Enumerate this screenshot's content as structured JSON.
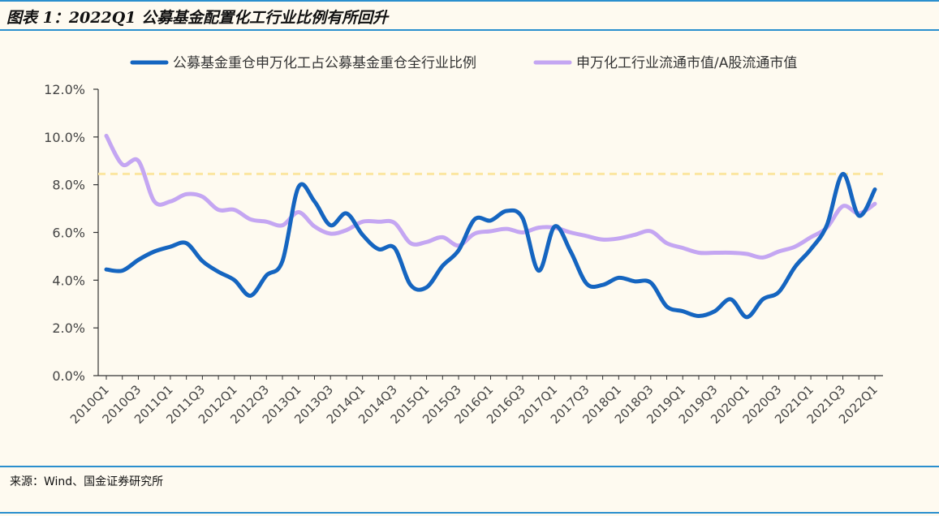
{
  "header": {
    "title": "图表 1：2022Q1 公募基金配置化工行业比例有所回升"
  },
  "footer": {
    "source": "来源：Wind、国金证券研究所"
  },
  "colors": {
    "accent_rule": "#2a8fce",
    "series_1": "#1565c0",
    "series_2": "#c4a6f2",
    "reference_line": "#fbe6a0",
    "background": "#fefaf0"
  },
  "chart_data": {
    "type": "line",
    "title": "",
    "xlabel": "",
    "ylabel": "",
    "ylim": [
      0,
      12
    ],
    "y_ticks": [
      "0.0%",
      "2.0%",
      "4.0%",
      "6.0%",
      "8.0%",
      "10.0%",
      "12.0%"
    ],
    "y_tick_values": [
      0,
      2,
      4,
      6,
      8,
      10,
      12
    ],
    "grid": false,
    "legend": "top",
    "x_tick_labels": [
      "2010Q1",
      "2010Q3",
      "2011Q1",
      "2011Q3",
      "2012Q1",
      "2012Q3",
      "2013Q1",
      "2013Q3",
      "2014Q1",
      "2014Q3",
      "2015Q1",
      "2015Q3",
      "2016Q1",
      "2016Q3",
      "2017Q1",
      "2017Q3",
      "2018Q1",
      "2018Q3",
      "2019Q1",
      "2019Q3",
      "2020Q1",
      "2020Q3",
      "2021Q1",
      "2021Q3",
      "2022Q1"
    ],
    "x": [
      "2010Q1",
      "2010Q2",
      "2010Q3",
      "2010Q4",
      "2011Q1",
      "2011Q2",
      "2011Q3",
      "2011Q4",
      "2012Q1",
      "2012Q2",
      "2012Q3",
      "2012Q4",
      "2013Q1",
      "2013Q2",
      "2013Q3",
      "2013Q4",
      "2014Q1",
      "2014Q2",
      "2014Q3",
      "2014Q4",
      "2015Q1",
      "2015Q2",
      "2015Q3",
      "2015Q4",
      "2016Q1",
      "2016Q2",
      "2016Q3",
      "2016Q4",
      "2017Q1",
      "2017Q2",
      "2017Q3",
      "2017Q4",
      "2018Q1",
      "2018Q2",
      "2018Q3",
      "2018Q4",
      "2019Q1",
      "2019Q2",
      "2019Q3",
      "2019Q4",
      "2020Q1",
      "2020Q2",
      "2020Q3",
      "2020Q4",
      "2021Q1",
      "2021Q2",
      "2021Q3",
      "2021Q4",
      "2022Q1"
    ],
    "series": [
      {
        "name": "公募基金重仓申万化工占公募基金重仓全行业比例",
        "color": "#1565c0",
        "values": [
          4.45,
          4.4,
          4.85,
          5.2,
          5.4,
          5.55,
          4.8,
          4.35,
          4.0,
          3.35,
          4.2,
          4.8,
          7.9,
          7.3,
          6.3,
          6.8,
          5.9,
          5.3,
          5.35,
          3.8,
          3.7,
          4.6,
          5.25,
          6.55,
          6.5,
          6.9,
          6.6,
          4.4,
          6.25,
          5.2,
          3.85,
          3.8,
          4.1,
          3.95,
          3.9,
          2.9,
          2.7,
          2.5,
          2.7,
          3.2,
          2.45,
          3.2,
          3.5,
          4.55,
          5.3,
          6.3,
          8.45,
          6.7,
          7.8
        ]
      },
      {
        "name": "申万化工行业流通市值/A股流通市值",
        "color": "#c4a6f2",
        "values": [
          10.05,
          8.85,
          9.0,
          7.3,
          7.3,
          7.6,
          7.5,
          6.95,
          6.95,
          6.55,
          6.45,
          6.3,
          6.85,
          6.25,
          5.95,
          6.1,
          6.45,
          6.45,
          6.4,
          5.55,
          5.6,
          5.8,
          5.45,
          5.95,
          6.05,
          6.15,
          6.0,
          6.2,
          6.2,
          6.0,
          5.85,
          5.7,
          5.75,
          5.9,
          6.05,
          5.55,
          5.35,
          5.15,
          5.15,
          5.15,
          5.1,
          4.95,
          5.2,
          5.4,
          5.8,
          6.2,
          7.1,
          6.8,
          7.2
        ]
      }
    ],
    "reference_line": {
      "value": 8.45,
      "style": "dashed",
      "color": "#fbe6a0"
    }
  }
}
